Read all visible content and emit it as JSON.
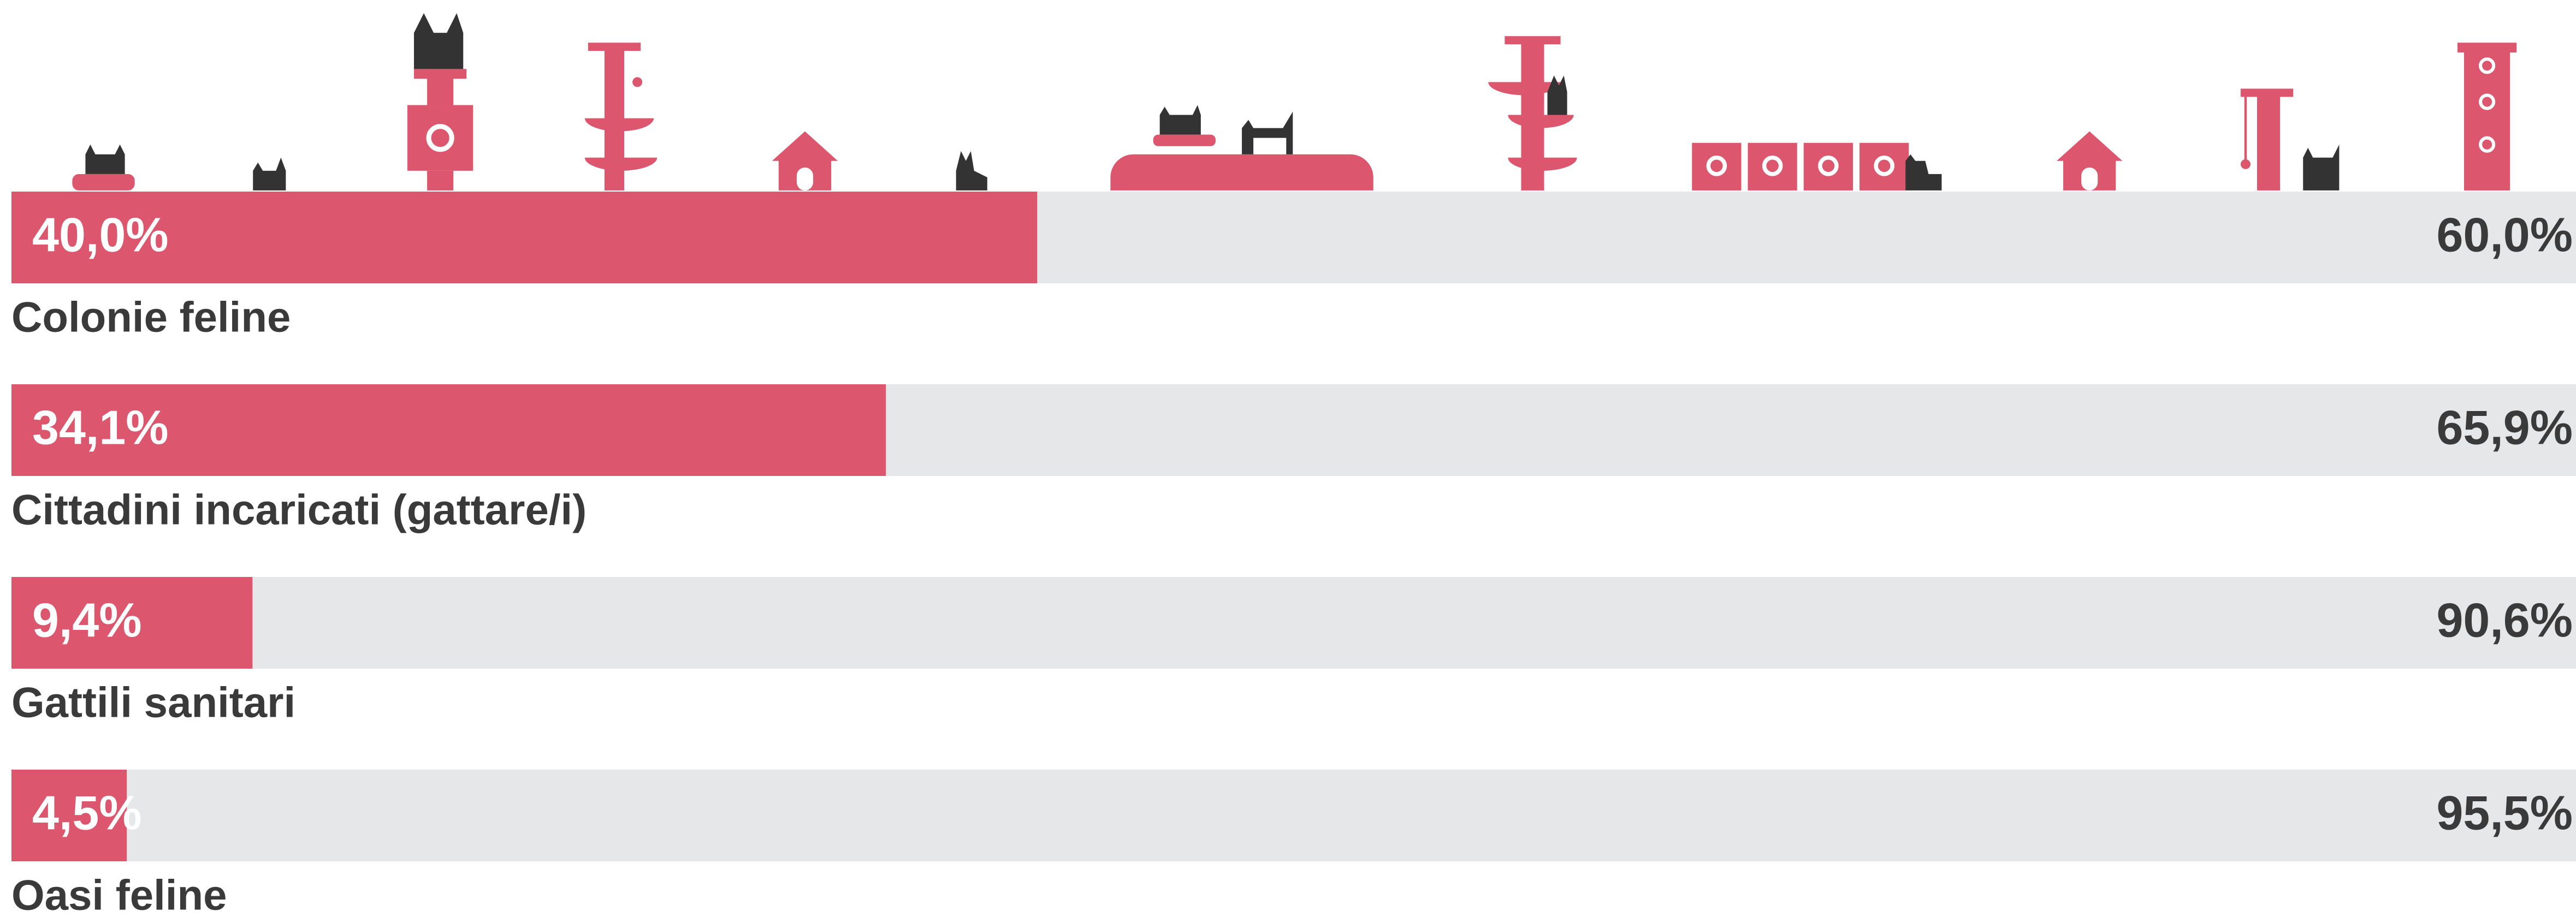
{
  "chart_data": {
    "type": "stacked-bar-horizontal",
    "categories": [
      "Colonie feline",
      "Cittadini incaricati (gattare/i)",
      "Gattili sanitari",
      "Oasi feline"
    ],
    "series": [
      {
        "color": "#dc576e",
        "values": [
          40.0,
          34.1,
          9.4,
          4.5
        ],
        "value_labels": [
          "40,0%",
          "34,1%",
          "9,4%",
          "4,5%"
        ]
      },
      {
        "color": "#e6e7e8",
        "values": [
          60.0,
          65.9,
          90.6,
          95.5
        ],
        "value_labels": [
          "60,0%",
          "65,9%",
          "90,6%",
          "95,5%"
        ]
      }
    ],
    "xlim": [
      0,
      100
    ]
  }
}
